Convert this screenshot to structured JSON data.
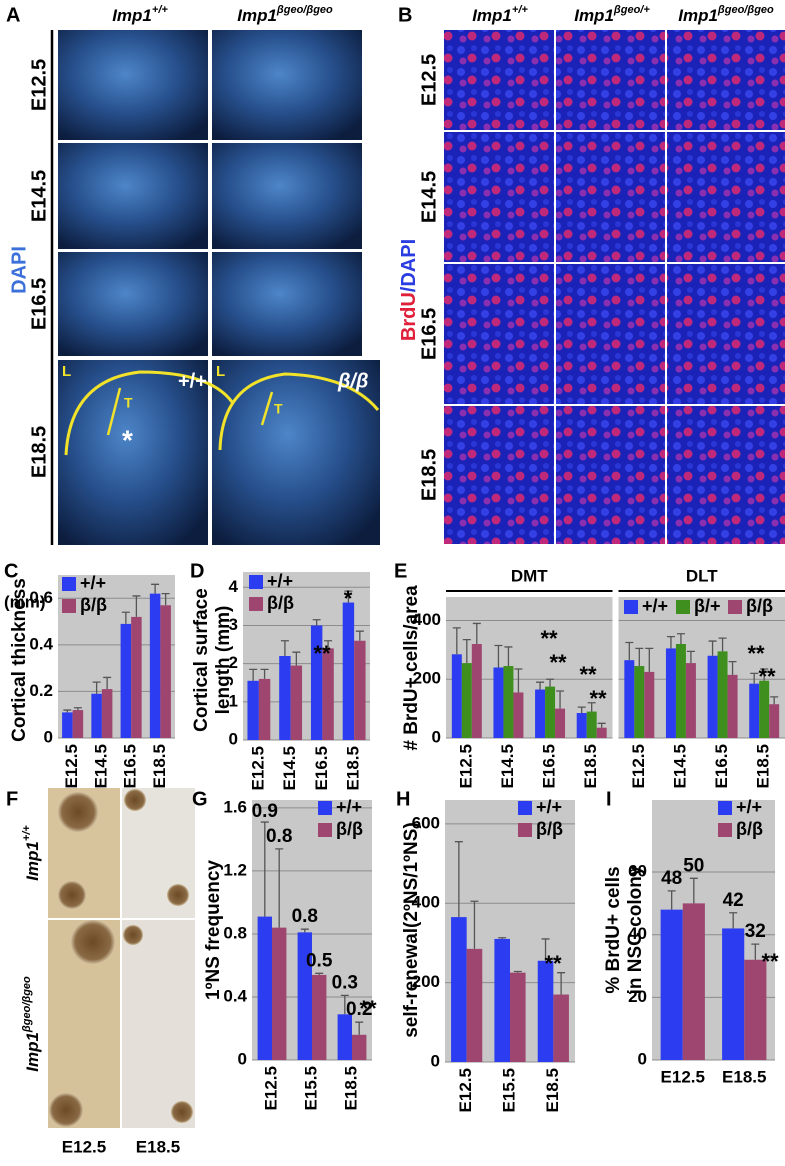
{
  "panel_a": {
    "label": "A",
    "columns": [
      {
        "base": "Imp1",
        "sup": "+/+"
      },
      {
        "base": "Imp1",
        "sup": "βgeo/βgeo"
      }
    ],
    "rows": [
      "E12.5",
      "E14.5",
      "E16.5",
      "E18.5"
    ],
    "stain": "DAPI",
    "annotations": [
      "L",
      "T",
      "+/+",
      "L",
      "T",
      "β/β",
      "*"
    ]
  },
  "panel_b": {
    "label": "B",
    "columns": [
      {
        "base": "Imp1",
        "sup": "+/+"
      },
      {
        "base": "Imp1",
        "sup": "βgeo/+"
      },
      {
        "base": "Imp1",
        "sup": "βgeo/βgeo"
      }
    ],
    "rows": [
      "E12.5",
      "E14.5",
      "E16.5",
      "E18.5"
    ],
    "stain": [
      "BrdU",
      "/DAPI"
    ]
  },
  "panel_f": {
    "label": "F",
    "rows": [
      {
        "base": "Imp1",
        "sup": "+/+"
      },
      {
        "base": "Imp1",
        "sup": "βgeo/βgeo"
      }
    ],
    "columns": [
      "E12.5",
      "E18.5"
    ]
  },
  "chart_data": [
    {
      "type": "bar",
      "panel": "C",
      "ylabel": [
        "Cortical thickness"
      ],
      "unit": "(mm)",
      "categories": [
        "E12.5",
        "E14.5",
        "E16.5",
        "E18.5"
      ],
      "series": [
        {
          "name": "+/+",
          "color": "#2c3cf0",
          "values": [
            0.11,
            0.19,
            0.49,
            0.62
          ],
          "errors": [
            0.01,
            0.05,
            0.05,
            0.04
          ]
        },
        {
          "name": "β/β",
          "color": "#9e4670",
          "values": [
            0.12,
            0.21,
            0.52,
            0.57
          ],
          "errors": [
            0.01,
            0.05,
            0.09,
            0.05
          ]
        }
      ],
      "ylim": [
        0,
        0.7
      ],
      "yticks": [
        0,
        0.2,
        0.4,
        0.6
      ],
      "grid": true,
      "legend": "upper left",
      "annotations": []
    },
    {
      "type": "bar",
      "panel": "D",
      "ylabel": [
        "Cortical surface",
        "length (mm)"
      ],
      "categories": [
        "E12.5",
        "E14.5",
        "E16.5",
        "E18.5"
      ],
      "series": [
        {
          "name": "+/+",
          "color": "#2c3cf0",
          "values": [
            1.55,
            2.2,
            3.0,
            3.6
          ],
          "errors": [
            0.3,
            0.4,
            0.15,
            0.3
          ]
        },
        {
          "name": "β/β",
          "color": "#9e4670",
          "values": [
            1.6,
            1.95,
            2.4,
            2.6
          ],
          "errors": [
            0.25,
            0.35,
            0.2,
            0.25
          ]
        }
      ],
      "ylim": [
        0,
        4.4
      ],
      "yticks": [
        0,
        1,
        2,
        3,
        4
      ],
      "grid": true,
      "legend": "upper left",
      "annotations": [
        "**",
        "*"
      ]
    },
    {
      "type": "bar",
      "panel": "E",
      "ylabel": [
        "# BrdU+ cells/area"
      ],
      "groups": [
        {
          "name": "DMT",
          "categories": [
            "E12.5",
            "E14.5",
            "E16.5",
            "E18.5"
          ],
          "series": [
            {
              "name": "+/+",
              "color": "#2c3cf0",
              "values": [
                285,
                240,
                165,
                85
              ],
              "errors": [
                90,
                75,
                25,
                20
              ]
            },
            {
              "name": "β/+",
              "color": "#3f8f1f",
              "values": [
                255,
                245,
                175,
                90
              ],
              "errors": [
                80,
                65,
                25,
                30
              ]
            },
            {
              "name": "β/β",
              "color": "#9e4670",
              "values": [
                320,
                155,
                100,
                35
              ],
              "errors": [
                70,
                80,
                60,
                15
              ]
            }
          ]
        },
        {
          "name": "DLT",
          "categories": [
            "E12.5",
            "E14.5",
            "E16.5",
            "E18.5"
          ],
          "series": [
            {
              "name": "+/+",
              "color": "#2c3cf0",
              "values": [
                265,
                305,
                280,
                185
              ],
              "errors": [
                60,
                40,
                50,
                35
              ]
            },
            {
              "name": "β/+",
              "color": "#3f8f1f",
              "values": [
                245,
                320,
                295,
                195
              ],
              "errors": [
                60,
                35,
                45,
                40
              ]
            },
            {
              "name": "β/β",
              "color": "#9e4670",
              "values": [
                225,
                255,
                215,
                115
              ],
              "errors": [
                80,
                40,
                45,
                25
              ]
            }
          ]
        }
      ],
      "ylim": [
        0,
        480
      ],
      "yticks": [
        0,
        200,
        400
      ],
      "grid": true,
      "legend": "upper right",
      "annotations": [
        "**",
        "**",
        "**",
        "**",
        "**",
        "**"
      ]
    },
    {
      "type": "bar",
      "panel": "G",
      "ylabel": [
        "1ºNS frequency"
      ],
      "categories": [
        "E12.5",
        "E15.5",
        "E18.5"
      ],
      "series": [
        {
          "name": "+/+",
          "color": "#2c3cf0",
          "values": [
            0.91,
            0.81,
            0.29
          ],
          "value_labels": [
            "0.9",
            "0.8",
            "0.3"
          ],
          "errors": [
            0.6,
            0.02,
            0.12
          ]
        },
        {
          "name": "β/β",
          "color": "#9e4670",
          "values": [
            0.84,
            0.54,
            0.16
          ],
          "value_labels": [
            "0.8",
            "0.5",
            "0.2"
          ],
          "errors": [
            0.5,
            0.01,
            0.08
          ]
        }
      ],
      "ylim": [
        0,
        1.65
      ],
      "yticks": [
        0,
        0.4,
        0.8,
        1.2,
        1.6
      ],
      "grid": true,
      "legend": "upper right",
      "annotations": [
        "**"
      ]
    },
    {
      "type": "bar",
      "panel": "H",
      "ylabel": [
        "self-renewal(2ºNS/1ºNS)"
      ],
      "categories": [
        "E12.5",
        "E15.5",
        "E18.5"
      ],
      "series": [
        {
          "name": "+/+",
          "color": "#2c3cf0",
          "values": [
            365,
            310,
            255
          ],
          "errors": [
            190,
            3,
            55
          ]
        },
        {
          "name": "β/β",
          "color": "#9e4670",
          "values": [
            285,
            225,
            170
          ],
          "errors": [
            120,
            3,
            55
          ]
        }
      ],
      "ylim": [
        0,
        660
      ],
      "yticks": [
        0,
        200,
        400,
        600
      ],
      "grid": true,
      "legend": "upper right",
      "annotations": [
        "**"
      ]
    },
    {
      "type": "bar",
      "panel": "I",
      "ylabel": [
        "% BrdU+ cells",
        "in NSC colony"
      ],
      "categories": [
        "E12.5",
        "E18.5"
      ],
      "show_values": true,
      "series": [
        {
          "name": "+/+",
          "color": "#2c3cf0",
          "values": [
            48,
            42
          ],
          "errors": [
            6,
            5
          ]
        },
        {
          "name": "β/β",
          "color": "#9e4670",
          "values": [
            50,
            32
          ],
          "errors": [
            8,
            5
          ]
        }
      ],
      "ylim": [
        0,
        83
      ],
      "yticks": [
        0,
        20,
        40,
        60
      ],
      "grid": true,
      "legend": "upper right",
      "annotations": [
        "**"
      ]
    }
  ]
}
